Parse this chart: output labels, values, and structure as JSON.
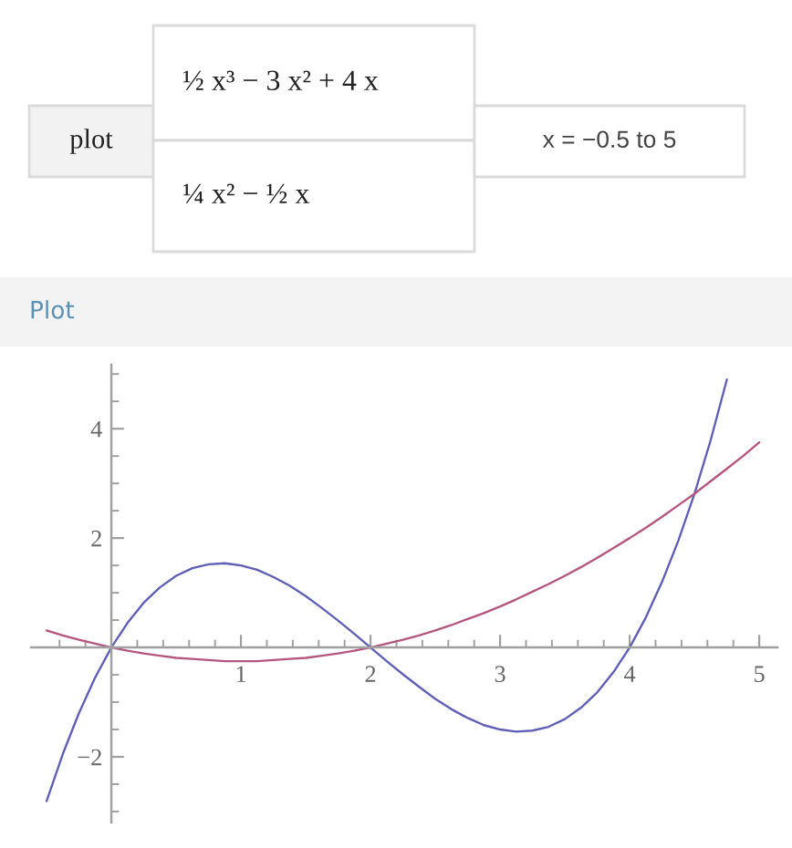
{
  "chart_data": {
    "type": "line",
    "title": "Plot",
    "annotations": [
      "plot",
      "½ x³ − 3 x² + 4 x",
      "¼ x² − ½ x",
      "x = −0.5 to 5"
    ],
    "xlim": [
      -0.62,
      5.14
    ],
    "ylim": [
      -3.2,
      5.17
    ],
    "xticks": [
      {
        "value": -0.4,
        "label": null
      },
      {
        "value": -0.2,
        "label": null
      },
      {
        "value": 0.2,
        "label": null
      },
      {
        "value": 0.4,
        "label": null
      },
      {
        "value": 0.6,
        "label": null
      },
      {
        "value": 0.8,
        "label": null
      },
      1,
      {
        "value": 1.2,
        "label": null
      },
      {
        "value": 1.4,
        "label": null
      },
      {
        "value": 1.6,
        "label": null
      },
      {
        "value": 1.8,
        "label": null
      },
      2,
      {
        "value": 2.2,
        "label": null
      },
      {
        "value": 2.4,
        "label": null
      },
      {
        "value": 2.6,
        "label": null
      },
      {
        "value": 2.8,
        "label": null
      },
      3,
      {
        "value": 3.2,
        "label": null
      },
      {
        "value": 3.4,
        "label": null
      },
      {
        "value": 3.6,
        "label": null
      },
      {
        "value": 3.8,
        "label": null
      },
      4,
      {
        "value": 4.2,
        "label": null
      },
      {
        "value": 4.4,
        "label": null
      },
      {
        "value": 4.6,
        "label": null
      },
      {
        "value": 4.8,
        "label": null
      },
      5
    ],
    "yticks": [
      {
        "value": -3,
        "label": null
      },
      {
        "value": -2.5,
        "label": null
      },
      {
        "value": -2,
        "label": "−2"
      },
      {
        "value": -1.5,
        "label": null
      },
      {
        "value": -1,
        "label": null
      },
      {
        "value": -0.5,
        "label": null
      },
      {
        "value": 0.5,
        "label": null
      },
      {
        "value": 1,
        "label": null
      },
      {
        "value": 1.5,
        "label": null
      },
      2,
      {
        "value": 2.5,
        "label": null
      },
      {
        "value": 3,
        "label": null
      },
      {
        "value": 3.5,
        "label": null
      },
      4,
      {
        "value": 4.5,
        "label": null
      },
      {
        "value": 5,
        "label": null
      }
    ],
    "series": [
      {
        "color": "#5f5fb5",
        "x": [
          -0.5,
          -0.375,
          -0.25,
          -0.125,
          0,
          0.125,
          0.25,
          0.375,
          0.5,
          0.625,
          0.75,
          0.875,
          1,
          1.125,
          1.25,
          1.375,
          1.5,
          1.625,
          1.75,
          1.875,
          2,
          2.125,
          2.25,
          2.375,
          2.5,
          2.625,
          2.75,
          2.875,
          3,
          3.125,
          3.25,
          3.375,
          3.5,
          3.625,
          3.75,
          3.875,
          4,
          4.125,
          4.25,
          4.375,
          4.5,
          4.625,
          4.75
        ],
        "values": [
          -2.81,
          -1.95,
          -1.2,
          -0.55,
          0,
          0.45,
          0.82,
          1.1,
          1.31,
          1.45,
          1.52,
          1.54,
          1.5,
          1.42,
          1.29,
          1.13,
          0.94,
          0.72,
          0.49,
          0.25,
          0,
          -0.25,
          -0.49,
          -0.72,
          -0.94,
          -1.13,
          -1.29,
          -1.42,
          -1.5,
          -1.54,
          -1.52,
          -1.45,
          -1.31,
          -1.1,
          -0.82,
          -0.45,
          0,
          0.55,
          1.2,
          1.95,
          2.81,
          3.79,
          4.9
        ]
      },
      {
        "color": "#b5567f",
        "x": [
          -0.5,
          -0.375,
          -0.25,
          -0.125,
          0,
          0.125,
          0.25,
          0.375,
          0.5,
          0.625,
          0.75,
          0.875,
          1,
          1.125,
          1.25,
          1.375,
          1.5,
          1.625,
          1.75,
          1.875,
          2,
          2.125,
          2.25,
          2.375,
          2.5,
          2.625,
          2.75,
          2.875,
          3,
          3.125,
          3.25,
          3.375,
          3.5,
          3.625,
          3.75,
          3.875,
          4,
          4.125,
          4.25,
          4.375,
          4.5,
          4.625,
          4.75,
          4.875,
          5
        ],
        "values": [
          0.31,
          0.22,
          0.14,
          0.07,
          0,
          -0.06,
          -0.11,
          -0.15,
          -0.19,
          -0.21,
          -0.23,
          -0.25,
          -0.25,
          -0.25,
          -0.23,
          -0.21,
          -0.19,
          -0.15,
          -0.11,
          -0.06,
          0,
          0.07,
          0.14,
          0.22,
          0.31,
          0.41,
          0.52,
          0.63,
          0.75,
          0.88,
          1.02,
          1.16,
          1.31,
          1.47,
          1.64,
          1.82,
          2,
          2.19,
          2.39,
          2.6,
          2.81,
          3.04,
          3.27,
          3.5,
          3.75
        ]
      }
    ]
  }
}
